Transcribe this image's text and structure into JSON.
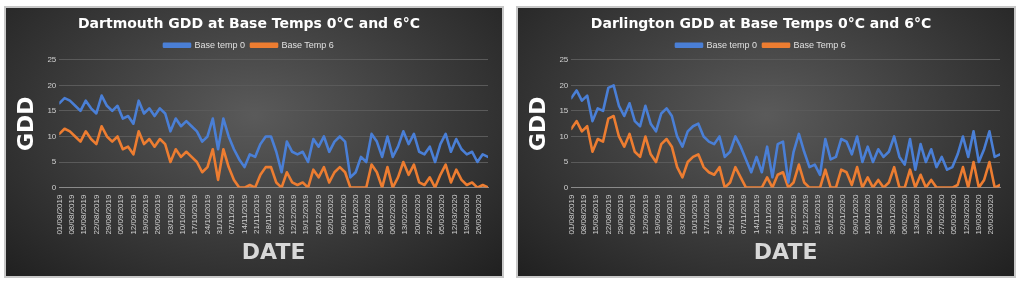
{
  "chart_data": [
    {
      "type": "line",
      "title": "Dartmouth GDD at Base Temps 0°C and 6°C",
      "xlabel": "DATE",
      "ylabel": "GDD",
      "legend": "top",
      "grid": "y",
      "line_style": "solid",
      "xlim": [
        "2019-08-01",
        "2020-03-31"
      ],
      "ylim": [
        0,
        25
      ],
      "yticks": [
        0,
        5,
        10,
        15,
        20,
        25
      ],
      "xticks": [
        {
          "value": "2019-08-01",
          "label": "01/08/2019"
        },
        {
          "value": "2019-08-08",
          "label": "08/08/2019"
        },
        {
          "value": "2019-08-15",
          "label": "15/08/2019"
        },
        {
          "value": "2019-08-22",
          "label": "22/08/2019"
        },
        {
          "value": "2019-08-29",
          "label": "29/08/2019"
        },
        {
          "value": "2019-09-05",
          "label": "05/09/2019"
        },
        {
          "value": "2019-09-12",
          "label": "12/09/2019"
        },
        {
          "value": "2019-09-19",
          "label": "19/09/2019"
        },
        {
          "value": "2019-09-26",
          "label": "26/09/2019"
        },
        {
          "value": "2019-10-03",
          "label": "03/10/2019"
        },
        {
          "value": "2019-10-10",
          "label": "10/10/2019"
        },
        {
          "value": "2019-10-17",
          "label": "17/10/2019"
        },
        {
          "value": "2019-10-24",
          "label": "24/10/2019"
        },
        {
          "value": "2019-10-31",
          "label": "31/10/2019"
        },
        {
          "value": "2019-11-07",
          "label": "07/11/2019"
        },
        {
          "value": "2019-11-14",
          "label": "14/11/2019"
        },
        {
          "value": "2019-11-21",
          "label": "21/11/2019"
        },
        {
          "value": "2019-11-28",
          "label": "28/11/2019"
        },
        {
          "value": "2019-12-05",
          "label": "05/12/2019"
        },
        {
          "value": "2019-12-12",
          "label": "12/12/2019"
        },
        {
          "value": "2019-12-19",
          "label": "19/12/2019"
        },
        {
          "value": "2019-12-26",
          "label": "26/12/2019"
        },
        {
          "value": "2020-01-02",
          "label": "02/01/2020"
        },
        {
          "value": "2020-01-09",
          "label": "09/01/2020"
        },
        {
          "value": "2020-01-16",
          "label": "16/01/2020"
        },
        {
          "value": "2020-01-23",
          "label": "23/01/2020"
        },
        {
          "value": "2020-01-30",
          "label": "30/01/2020"
        },
        {
          "value": "2020-02-06",
          "label": "06/02/2020"
        },
        {
          "value": "2020-02-13",
          "label": "13/02/2020"
        },
        {
          "value": "2020-02-20",
          "label": "20/02/2020"
        },
        {
          "value": "2020-02-27",
          "label": "27/02/2020"
        },
        {
          "value": "2020-03-05",
          "label": "05/03/2020"
        },
        {
          "value": "2020-03-12",
          "label": "12/03/2020"
        },
        {
          "value": "2020-03-19",
          "label": "19/03/2020"
        },
        {
          "value": "2020-03-26",
          "label": "26/03/2020"
        }
      ],
      "x": [
        "2019-08-01",
        "2019-08-04",
        "2019-08-07",
        "2019-08-10",
        "2019-08-13",
        "2019-08-16",
        "2019-08-19",
        "2019-08-22",
        "2019-08-25",
        "2019-08-28",
        "2019-08-31",
        "2019-09-03",
        "2019-09-06",
        "2019-09-09",
        "2019-09-12",
        "2019-09-15",
        "2019-09-18",
        "2019-09-21",
        "2019-09-24",
        "2019-09-27",
        "2019-09-30",
        "2019-10-03",
        "2019-10-06",
        "2019-10-09",
        "2019-10-12",
        "2019-10-15",
        "2019-10-18",
        "2019-10-21",
        "2019-10-24",
        "2019-10-27",
        "2019-10-30",
        "2019-11-02",
        "2019-11-05",
        "2019-11-08",
        "2019-11-11",
        "2019-11-14",
        "2019-11-17",
        "2019-11-20",
        "2019-11-23",
        "2019-11-26",
        "2019-11-29",
        "2019-12-02",
        "2019-12-05",
        "2019-12-08",
        "2019-12-11",
        "2019-12-14",
        "2019-12-17",
        "2019-12-20",
        "2019-12-23",
        "2019-12-26",
        "2019-12-29",
        "2020-01-01",
        "2020-01-04",
        "2020-01-07",
        "2020-01-10",
        "2020-01-13",
        "2020-01-16",
        "2020-01-19",
        "2020-01-22",
        "2020-01-25",
        "2020-01-28",
        "2020-01-31",
        "2020-02-03",
        "2020-02-06",
        "2020-02-09",
        "2020-02-12",
        "2020-02-15",
        "2020-02-18",
        "2020-02-21",
        "2020-02-24",
        "2020-02-27",
        "2020-03-01",
        "2020-03-04",
        "2020-03-07",
        "2020-03-10",
        "2020-03-13",
        "2020-03-16",
        "2020-03-19",
        "2020-03-22",
        "2020-03-25",
        "2020-03-28",
        "2020-03-31"
      ],
      "series": [
        {
          "name": "Base temp 0",
          "color": "#4a7fd6",
          "values": [
            16.5,
            17.5,
            17,
            16,
            15,
            17,
            15.5,
            14.5,
            18,
            16,
            15,
            16,
            13.5,
            14,
            12.5,
            17,
            14.5,
            15.5,
            14,
            15.5,
            14.5,
            11,
            13.5,
            12,
            13,
            12,
            11,
            9,
            10,
            13.5,
            7.5,
            13.5,
            10,
            7.5,
            5.5,
            4,
            6.5,
            6,
            8.5,
            10,
            10,
            7,
            3,
            9,
            7,
            6.5,
            7,
            5,
            9.5,
            8,
            10,
            7,
            9,
            10,
            9,
            2,
            3,
            6,
            5,
            10.5,
            9,
            6,
            10,
            6,
            8,
            11,
            8.5,
            10.5,
            7,
            6.5,
            8,
            5,
            8.5,
            10.5,
            7,
            9.5,
            7.5,
            6.5,
            7,
            5,
            6.5,
            6
          ]
        },
        {
          "name": "Base Temp 6",
          "color": "#ed7d31",
          "values": [
            10.5,
            11.5,
            11,
            10,
            9,
            11,
            9.5,
            8.5,
            12,
            10,
            9,
            10,
            7.5,
            8,
            6.5,
            11,
            8.5,
            9.5,
            8,
            9.5,
            8.5,
            5,
            7.5,
            6,
            7,
            6,
            5,
            3,
            4,
            7.5,
            1.5,
            7.5,
            4,
            1.5,
            0,
            0,
            0.5,
            0,
            2.5,
            4,
            4,
            1,
            0,
            3,
            1,
            0.5,
            1,
            0,
            3.5,
            2,
            4,
            1,
            3,
            4,
            3,
            0,
            0,
            0,
            0,
            4.5,
            3,
            0,
            4,
            0,
            2,
            5,
            2.5,
            4.5,
            1,
            0.5,
            2,
            0,
            2.5,
            4.5,
            1,
            3.5,
            1.5,
            0.5,
            1,
            0,
            0.5,
            0
          ]
        }
      ]
    },
    {
      "type": "line",
      "title": "Darlington GDD at Base Temps 0°C and 6°C",
      "xlabel": "DATE",
      "ylabel": "GDD",
      "legend": "top",
      "grid": "y",
      "line_style": "solid",
      "xlim": [
        "2019-08-01",
        "2020-03-31"
      ],
      "ylim": [
        0,
        25
      ],
      "yticks": [
        0,
        5,
        10,
        15,
        20,
        25
      ],
      "xticks": [
        {
          "value": "2019-08-01",
          "label": "01/08/2019"
        },
        {
          "value": "2019-08-08",
          "label": "08/08/2019"
        },
        {
          "value": "2019-08-15",
          "label": "15/08/2019"
        },
        {
          "value": "2019-08-22",
          "label": "22/08/2019"
        },
        {
          "value": "2019-08-29",
          "label": "29/08/2019"
        },
        {
          "value": "2019-09-05",
          "label": "05/09/2019"
        },
        {
          "value": "2019-09-12",
          "label": "12/09/2019"
        },
        {
          "value": "2019-09-19",
          "label": "19/09/2019"
        },
        {
          "value": "2019-09-26",
          "label": "26/09/2019"
        },
        {
          "value": "2019-10-03",
          "label": "03/10/2019"
        },
        {
          "value": "2019-10-10",
          "label": "10/10/2019"
        },
        {
          "value": "2019-10-17",
          "label": "17/10/2019"
        },
        {
          "value": "2019-10-24",
          "label": "24/10/2019"
        },
        {
          "value": "2019-10-31",
          "label": "31/10/2019"
        },
        {
          "value": "2019-11-07",
          "label": "07/11/2019"
        },
        {
          "value": "2019-11-14",
          "label": "14/11/2019"
        },
        {
          "value": "2019-11-21",
          "label": "21/11/2019"
        },
        {
          "value": "2019-11-28",
          "label": "28/11/2019"
        },
        {
          "value": "2019-12-05",
          "label": "05/12/2019"
        },
        {
          "value": "2019-12-12",
          "label": "12/12/2019"
        },
        {
          "value": "2019-12-19",
          "label": "19/12/2019"
        },
        {
          "value": "2019-12-26",
          "label": "26/12/2019"
        },
        {
          "value": "2020-01-02",
          "label": "02/01/2020"
        },
        {
          "value": "2020-01-09",
          "label": "09/01/2020"
        },
        {
          "value": "2020-01-16",
          "label": "16/01/2020"
        },
        {
          "value": "2020-01-23",
          "label": "23/01/2020"
        },
        {
          "value": "2020-01-30",
          "label": "30/01/2020"
        },
        {
          "value": "2020-02-06",
          "label": "06/02/2020"
        },
        {
          "value": "2020-02-13",
          "label": "13/02/2020"
        },
        {
          "value": "2020-02-20",
          "label": "20/02/2020"
        },
        {
          "value": "2020-02-27",
          "label": "27/02/2020"
        },
        {
          "value": "2020-03-05",
          "label": "05/03/2020"
        },
        {
          "value": "2020-03-12",
          "label": "12/03/2020"
        },
        {
          "value": "2020-03-19",
          "label": "19/03/2020"
        },
        {
          "value": "2020-03-26",
          "label": "26/03/2020"
        }
      ],
      "x": [
        "2019-08-01",
        "2019-08-04",
        "2019-08-07",
        "2019-08-10",
        "2019-08-13",
        "2019-08-16",
        "2019-08-19",
        "2019-08-22",
        "2019-08-25",
        "2019-08-28",
        "2019-08-31",
        "2019-09-03",
        "2019-09-06",
        "2019-09-09",
        "2019-09-12",
        "2019-09-15",
        "2019-09-18",
        "2019-09-21",
        "2019-09-24",
        "2019-09-27",
        "2019-09-30",
        "2019-10-03",
        "2019-10-06",
        "2019-10-09",
        "2019-10-12",
        "2019-10-15",
        "2019-10-18",
        "2019-10-21",
        "2019-10-24",
        "2019-10-27",
        "2019-10-30",
        "2019-11-02",
        "2019-11-05",
        "2019-11-08",
        "2019-11-11",
        "2019-11-14",
        "2019-11-17",
        "2019-11-20",
        "2019-11-23",
        "2019-11-26",
        "2019-11-29",
        "2019-12-02",
        "2019-12-05",
        "2019-12-08",
        "2019-12-11",
        "2019-12-14",
        "2019-12-17",
        "2019-12-20",
        "2019-12-23",
        "2019-12-26",
        "2019-12-29",
        "2020-01-01",
        "2020-01-04",
        "2020-01-07",
        "2020-01-10",
        "2020-01-13",
        "2020-01-16",
        "2020-01-19",
        "2020-01-22",
        "2020-01-25",
        "2020-01-28",
        "2020-01-31",
        "2020-02-03",
        "2020-02-06",
        "2020-02-09",
        "2020-02-12",
        "2020-02-15",
        "2020-02-18",
        "2020-02-21",
        "2020-02-24",
        "2020-02-27",
        "2020-03-01",
        "2020-03-04",
        "2020-03-07",
        "2020-03-10",
        "2020-03-13",
        "2020-03-16",
        "2020-03-19",
        "2020-03-22",
        "2020-03-25",
        "2020-03-28",
        "2020-03-31"
      ],
      "series": [
        {
          "name": "Base temp 0",
          "color": "#4a7fd6",
          "values": [
            17.5,
            19,
            17,
            18,
            13,
            15.5,
            15,
            19.5,
            20,
            16,
            14,
            16.5,
            13,
            12,
            16,
            12.5,
            11,
            14.5,
            15.5,
            14,
            10,
            8,
            11,
            12,
            12.5,
            10,
            9,
            8.5,
            10,
            6,
            7,
            10,
            8,
            5.5,
            3,
            6,
            3,
            8,
            2,
            8.5,
            9,
            1,
            7,
            10.5,
            7,
            4,
            4.5,
            2.5,
            9.5,
            5.5,
            6,
            9.5,
            9,
            6.5,
            10,
            5,
            8,
            5,
            7.5,
            6,
            7,
            10,
            6,
            4.5,
            9.5,
            3.5,
            8.5,
            5,
            7.5,
            4,
            6,
            3.5,
            4,
            6.5,
            10,
            6,
            11,
            5,
            7.5,
            11,
            6,
            6.5
          ]
        },
        {
          "name": "Base Temp 6",
          "color": "#ed7d31",
          "values": [
            11.5,
            13,
            11,
            12,
            7,
            9.5,
            9,
            13.5,
            14,
            10,
            8,
            10.5,
            7,
            6,
            10,
            6.5,
            5,
            8.5,
            9.5,
            8,
            4,
            2,
            5,
            6,
            6.5,
            4,
            3,
            2.5,
            4,
            0,
            1,
            4,
            2,
            0,
            0,
            0,
            0,
            2,
            0,
            2.5,
            3,
            0,
            1,
            4.5,
            1,
            0,
            0,
            0,
            3.5,
            0,
            0,
            3.5,
            3,
            0.5,
            4,
            0,
            2,
            0,
            1.5,
            0,
            1,
            4,
            0,
            0,
            3.5,
            0,
            2.5,
            0,
            1.5,
            0,
            0,
            0,
            0,
            0.5,
            4,
            0,
            5,
            0,
            1.5,
            5,
            0,
            0.5
          ]
        }
      ]
    }
  ]
}
